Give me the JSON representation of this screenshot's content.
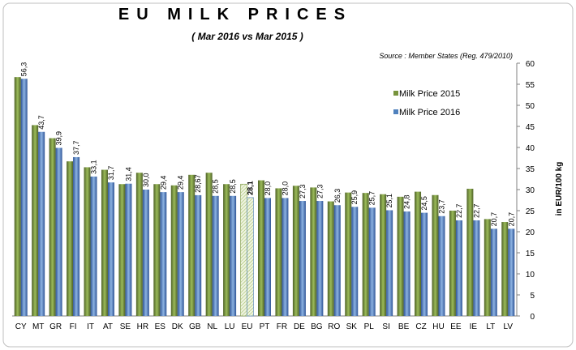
{
  "chart_data": {
    "type": "bar",
    "title": "EU MILK PRICES",
    "subtitle": "( Mar 2016 vs Mar 2015 )",
    "source": "Source : Member States (Reg. 479/2010)",
    "y_label": "in EUR/100 kg",
    "categories": [
      "CY",
      "MT",
      "GR",
      "FI",
      "IT",
      "AT",
      "SE",
      "HR",
      "ES",
      "DK",
      "GB",
      "NL",
      "LU",
      "EU",
      "PT",
      "FR",
      "DE",
      "BG",
      "RO",
      "SK",
      "PL",
      "SI",
      "BE",
      "CZ",
      "HU",
      "EE",
      "IE",
      "LT",
      "LV"
    ],
    "highlight_index": 13,
    "series": [
      {
        "name": "Milk Price 2015",
        "color": "#77933c",
        "values": [
          56.7,
          45.3,
          42.2,
          36.7,
          35.3,
          34.7,
          31.3,
          34.0,
          31.3,
          31.0,
          33.5,
          34.0,
          31.3,
          31.3,
          32.2,
          30.3,
          30.9,
          30.5,
          27.2,
          29.3,
          29.2,
          28.9,
          28.3,
          29.5,
          28.7,
          25.0,
          30.2,
          23.0,
          22.3
        ]
      },
      {
        "name": "Milk Price 2016",
        "color": "#4f81bd",
        "values": [
          56.3,
          43.7,
          39.9,
          37.7,
          33.1,
          31.7,
          31.4,
          30.0,
          29.4,
          29.4,
          28.67,
          28.5,
          28.5,
          28.1,
          28.0,
          28.0,
          27.3,
          27.3,
          26.3,
          25.9,
          25.7,
          25.1,
          24.8,
          24.5,
          23.7,
          22.7,
          22.7,
          20.7,
          20.7
        ],
        "value_labels": [
          "56,3",
          "43,7",
          "39,9",
          "37,7",
          "33,1",
          "31,7",
          "31,4",
          "30,0",
          "29,4",
          "29,4",
          "28,67",
          "28,5",
          "28,5",
          "28,1",
          "28,0",
          "28,0",
          "27,3",
          "27,3",
          "26,3",
          "25,9",
          "25,7",
          "25,1",
          "24,8",
          "24,5",
          "23,7",
          "22,7",
          "22,7",
          "20,7",
          "20,7"
        ]
      }
    ],
    "ylim": [
      0,
      60
    ],
    "yticks": [
      0,
      5,
      10,
      15,
      20,
      25,
      30,
      35,
      40,
      45,
      50,
      55,
      60
    ],
    "y_axis_side": "right",
    "grid": false
  }
}
